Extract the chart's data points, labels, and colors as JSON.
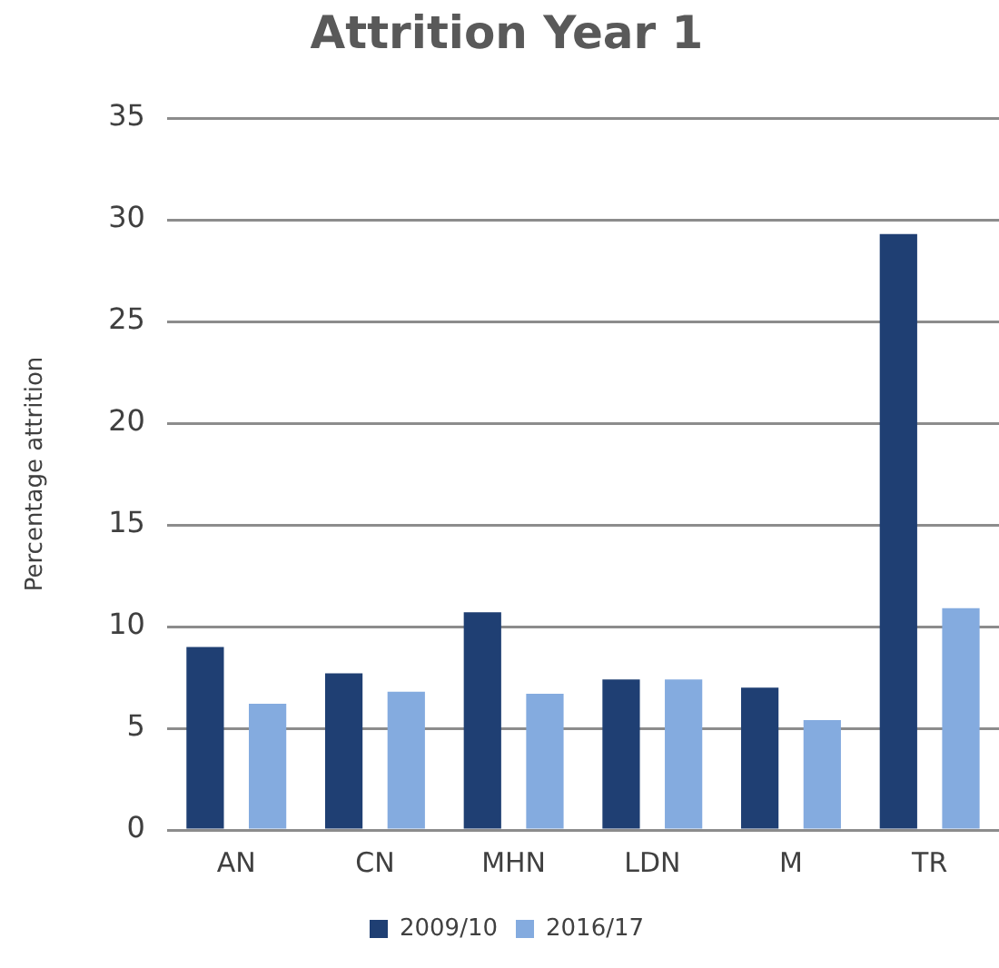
{
  "chart_data": {
    "type": "bar",
    "title": "Attrition Year 1",
    "ylabel": "Percentage attrition",
    "categories": [
      "AN",
      "CN",
      "MHN",
      "LDN",
      "M",
      "TR"
    ],
    "series": [
      {
        "name": "2009/10",
        "color": "#1f3f73",
        "values": [
          9.0,
          7.7,
          10.7,
          7.4,
          7.0,
          29.3
        ]
      },
      {
        "name": "2016/17",
        "color": "#84abdf",
        "values": [
          6.2,
          6.8,
          6.7,
          7.4,
          5.4,
          10.9
        ]
      }
    ],
    "ylim": [
      0,
      35
    ],
    "yticks": [
      0,
      5,
      10,
      15,
      20,
      25,
      30,
      35
    ],
    "grid": "y",
    "legend": "bottom"
  }
}
